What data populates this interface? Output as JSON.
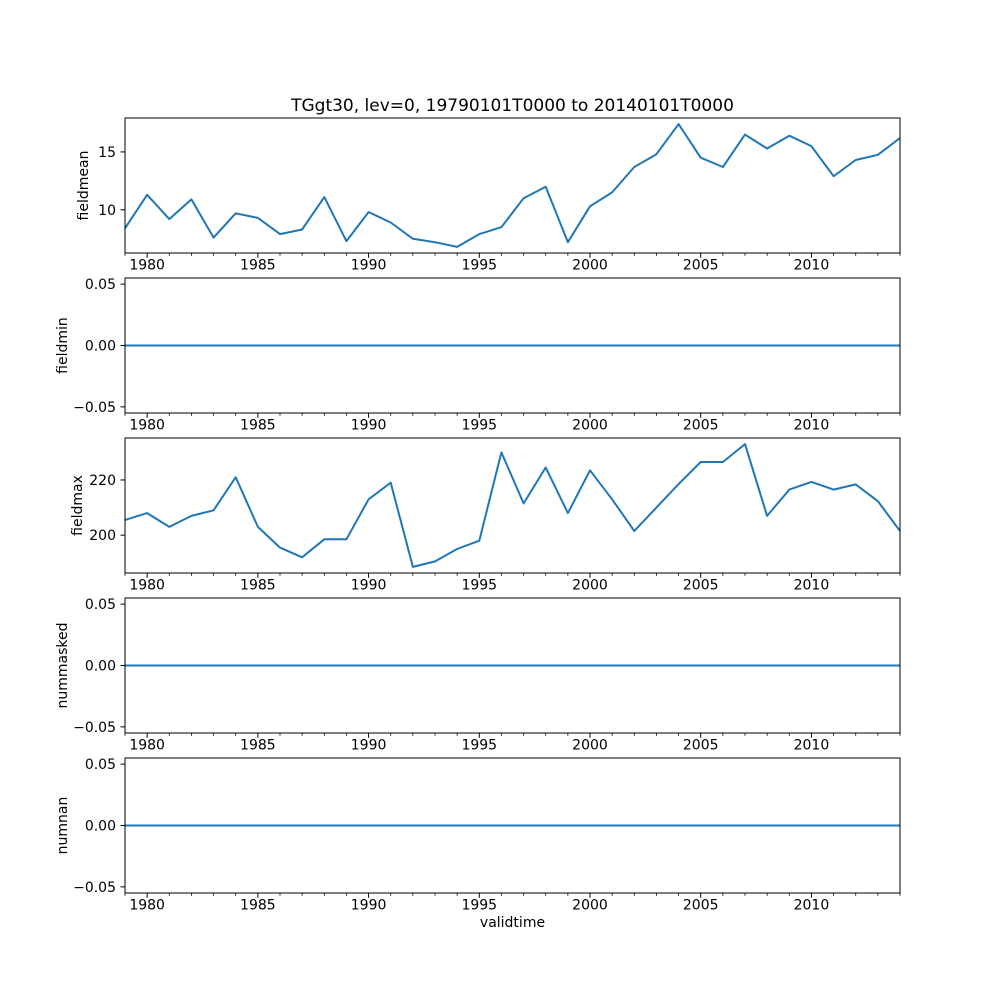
{
  "figure": {
    "title": "TGgt30, lev=0, 19790101T0000 to 20140101T0000",
    "background_color": "#ffffff",
    "line_color": "#1f77b4",
    "axis_color": "#000000",
    "x_axis": {
      "label": "validtime",
      "range": [
        1979,
        2014
      ],
      "major_ticks": [
        1980,
        1985,
        1990,
        1995,
        2000,
        2005,
        2010
      ],
      "major_tick_labels": [
        "1980",
        "1985",
        "1990",
        "1995",
        "2000",
        "2005",
        "2010"
      ],
      "minor_tick_step_years": 1
    }
  },
  "chart_data": [
    {
      "type": "line",
      "ylabel": "fieldmean",
      "x_start": 1979,
      "x_end": 2014,
      "x_step": 1,
      "values": [
        8.4,
        11.3,
        9.2,
        10.9,
        7.6,
        9.7,
        9.3,
        7.9,
        8.3,
        11.1,
        7.3,
        9.8,
        8.9,
        7.5,
        7.2,
        6.8,
        7.9,
        8.5,
        11.0,
        12.0,
        7.2,
        10.3,
        11.5,
        13.7,
        14.8,
        17.4,
        14.5,
        13.7,
        16.5,
        15.3,
        16.4,
        15.5,
        12.9,
        14.3,
        14.75,
        16.2
      ],
      "ylim": [
        6.27,
        17.93
      ],
      "yticks": [
        {
          "value": 10,
          "label": "10"
        },
        {
          "value": 15,
          "label": "15"
        }
      ],
      "grid": false,
      "legend": null
    },
    {
      "type": "line",
      "ylabel": "fieldmin",
      "x_start": 1979,
      "x_end": 2014,
      "x_step": 1,
      "constant_value": 0.0,
      "ylim": [
        -0.055,
        0.055
      ],
      "yticks": [
        {
          "value": -0.05,
          "label": "−0.05"
        },
        {
          "value": 0.0,
          "label": "0.00"
        },
        {
          "value": 0.05,
          "label": "0.05"
        }
      ],
      "grid": false,
      "legend": null
    },
    {
      "type": "line",
      "ylabel": "fieldmax",
      "x_start": 1979,
      "x_end": 2014,
      "x_step": 1,
      "values": [
        205.5,
        208,
        203,
        207,
        209,
        221,
        203,
        195.5,
        192,
        198.5,
        198.5,
        213,
        219,
        188.5,
        190.5,
        195,
        198,
        230,
        211.5,
        224.5,
        208,
        223.5,
        213,
        201.5,
        210,
        218.5,
        226.5,
        226.5,
        233,
        207,
        216.5,
        219.3,
        216.5,
        218.4,
        212.3,
        201.5
      ],
      "ylim": [
        186.3,
        235.2
      ],
      "yticks": [
        {
          "value": 200,
          "label": "200"
        },
        {
          "value": 220,
          "label": "220"
        }
      ],
      "grid": false,
      "legend": null
    },
    {
      "type": "line",
      "ylabel": "nummasked",
      "x_start": 1979,
      "x_end": 2014,
      "x_step": 1,
      "constant_value": 0.0,
      "ylim": [
        -0.055,
        0.055
      ],
      "yticks": [
        {
          "value": -0.05,
          "label": "−0.05"
        },
        {
          "value": 0.0,
          "label": "0.00"
        },
        {
          "value": 0.05,
          "label": "0.05"
        }
      ],
      "grid": false,
      "legend": null
    },
    {
      "type": "line",
      "ylabel": "numnan",
      "x_start": 1979,
      "x_end": 2014,
      "x_step": 1,
      "constant_value": 0.0,
      "ylim": [
        -0.055,
        0.055
      ],
      "yticks": [
        {
          "value": -0.05,
          "label": "−0.05"
        },
        {
          "value": 0.0,
          "label": "0.00"
        },
        {
          "value": 0.05,
          "label": "0.05"
        }
      ],
      "grid": false,
      "legend": null
    }
  ]
}
